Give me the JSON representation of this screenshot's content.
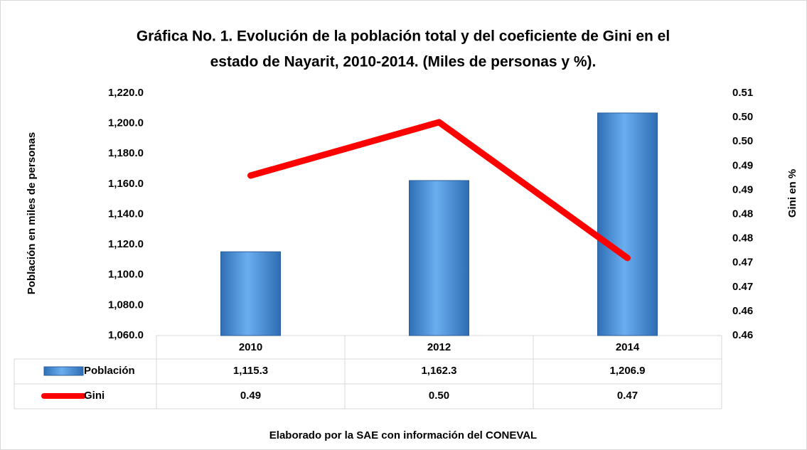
{
  "chart_data": {
    "type": "bar_line",
    "title": [
      "Gráfica No. 1. Evolución de la población total y del coeficiente de Gini en el",
      "estado de Nayarit, 2010-2014. (Miles de personas y %)."
    ],
    "ylabel": "Población en miles de personas",
    "y2label": "Gini en %",
    "footer": "Elaborado por la SAE con información del CONEVAL",
    "categories": [
      "2010",
      "2012",
      "2014"
    ],
    "series": [
      {
        "name": "Población",
        "type": "bar",
        "color": "#4a8fd6",
        "values": [
          1115.3,
          1162.3,
          1206.9
        ],
        "value_labels": [
          "1,115.3",
          "1,162.3",
          "1,206.9"
        ]
      },
      {
        "name": "Gini",
        "type": "line",
        "axis": "y2",
        "color": "#ff0000",
        "values": [
          0.488,
          0.499,
          0.471
        ],
        "value_labels": [
          "0.49",
          "0.50",
          "0.47"
        ]
      }
    ],
    "ylim": [
      1060,
      1220
    ],
    "yticks": [
      {
        "value": 1060,
        "label": "1,060.0"
      },
      {
        "value": 1080,
        "label": "1,080.0"
      },
      {
        "value": 1100,
        "label": "1,100.0"
      },
      {
        "value": 1120,
        "label": "1,120.0"
      },
      {
        "value": 1140,
        "label": "1,140.0"
      },
      {
        "value": 1160,
        "label": "1,160.0"
      },
      {
        "value": 1180,
        "label": "1,180.0"
      },
      {
        "value": 1200,
        "label": "1,200.0"
      },
      {
        "value": 1220,
        "label": "1,220.0"
      }
    ],
    "y2lim": [
      0.455,
      0.505
    ],
    "y2ticks": [
      {
        "value": 0.455,
        "label": "0.46"
      },
      {
        "value": 0.46,
        "label": "0.46"
      },
      {
        "value": 0.465,
        "label": "0.47"
      },
      {
        "value": 0.47,
        "label": "0.47"
      },
      {
        "value": 0.475,
        "label": "0.48"
      },
      {
        "value": 0.48,
        "label": "0.48"
      },
      {
        "value": 0.485,
        "label": "0.49"
      },
      {
        "value": 0.49,
        "label": "0.49"
      },
      {
        "value": 0.495,
        "label": "0.50"
      },
      {
        "value": 0.5,
        "label": "0.50"
      },
      {
        "value": 0.505,
        "label": "0.51"
      }
    ]
  }
}
